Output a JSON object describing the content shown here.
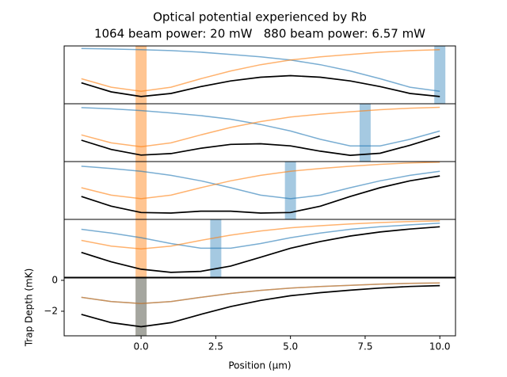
{
  "chart_data": {
    "type": "line",
    "title": "Optical potential experienced by Rb",
    "subtitle": "1064 beam power: 20 mW   880 beam power: 6.57 mW",
    "xlabel": "Position (μm)",
    "ylabel": "Trap Depth (mK)",
    "x": [
      -2,
      -1,
      0,
      1,
      2,
      3,
      4,
      5,
      6,
      7,
      8,
      9,
      10
    ],
    "xlim": [
      -2.575,
      10.525
    ],
    "xticks": [
      {
        "value": 0,
        "label": "0.0"
      },
      {
        "value": 2.5,
        "label": "2.5"
      },
      {
        "value": 5,
        "label": "5.0"
      },
      {
        "value": 7.5,
        "label": "7.5"
      },
      {
        "value": 10,
        "label": "10.0"
      }
    ],
    "panels": [
      {
        "ylim": [
          -1.9,
          -0.05
        ],
        "bar_1064": 0,
        "bar_880": 10,
        "series": [
          {
            "color": "#1f77b4",
            "values": [
              -0.13,
              -0.15,
              -0.17,
              -0.2,
              -0.25,
              -0.32,
              -0.4,
              -0.5,
              -0.65,
              -0.85,
              -1.1,
              -1.37,
              -1.5
            ]
          },
          {
            "color": "#ff7f0e",
            "values": [
              -1.1,
              -1.37,
              -1.5,
              -1.37,
              -1.1,
              -0.85,
              -0.65,
              -0.5,
              -0.4,
              -0.32,
              -0.25,
              -0.2,
              -0.17
            ]
          },
          {
            "color": "#000000",
            "values": [
              -1.23,
              -1.52,
              -1.67,
              -1.57,
              -1.35,
              -1.17,
              -1.05,
              -1.0,
              -1.05,
              -1.17,
              -1.35,
              -1.57,
              -1.67
            ]
          }
        ]
      },
      {
        "ylim": [
          -2.0,
          -0.05
        ],
        "bar_1064": 0,
        "bar_880": 7.5,
        "series": [
          {
            "color": "#1f77b4",
            "values": [
              -0.18,
              -0.22,
              -0.28,
              -0.36,
              -0.45,
              -0.57,
              -0.75,
              -0.97,
              -1.25,
              -1.47,
              -1.47,
              -1.25,
              -0.97
            ]
          },
          {
            "color": "#ff7f0e",
            "values": [
              -1.1,
              -1.37,
              -1.5,
              -1.37,
              -1.1,
              -0.85,
              -0.65,
              -0.5,
              -0.4,
              -0.32,
              -0.25,
              -0.2,
              -0.17
            ]
          },
          {
            "color": "#000000",
            "values": [
              -1.28,
              -1.59,
              -1.78,
              -1.73,
              -1.55,
              -1.42,
              -1.4,
              -1.47,
              -1.65,
              -1.79,
              -1.72,
              -1.45,
              -1.14
            ]
          }
        ]
      },
      {
        "ylim": [
          -2.25,
          -0.15
        ],
        "bar_1064": 0,
        "bar_880": 5,
        "series": [
          {
            "color": "#1f77b4",
            "values": [
              -0.32,
              -0.4,
              -0.5,
              -0.65,
              -0.85,
              -1.1,
              -1.37,
              -1.5,
              -1.37,
              -1.1,
              -0.85,
              -0.65,
              -0.5
            ]
          },
          {
            "color": "#ff7f0e",
            "values": [
              -1.1,
              -1.37,
              -1.5,
              -1.37,
              -1.1,
              -0.85,
              -0.65,
              -0.5,
              -0.4,
              -0.32,
              -0.25,
              -0.2,
              -0.17
            ]
          },
          {
            "color": "#000000",
            "values": [
              -1.42,
              -1.77,
              -2.0,
              -2.02,
              -1.95,
              -1.95,
              -2.02,
              -2.0,
              -1.77,
              -1.42,
              -1.1,
              -0.85,
              -0.67
            ]
          }
        ]
      },
      {
        "ylim": [
          -2.85,
          -0.1
        ],
        "bar_1064": 0,
        "bar_880": 2.5,
        "series": [
          {
            "color": "#1f77b4",
            "values": [
              -0.57,
              -0.75,
              -0.97,
              -1.25,
              -1.47,
              -1.47,
              -1.25,
              -0.97,
              -0.75,
              -0.57,
              -0.45,
              -0.36,
              -0.28
            ]
          },
          {
            "color": "#ff7f0e",
            "values": [
              -1.1,
              -1.37,
              -1.5,
              -1.37,
              -1.1,
              -0.85,
              -0.65,
              -0.5,
              -0.4,
              -0.32,
              -0.25,
              -0.2,
              -0.17
            ]
          },
          {
            "color": "#000000",
            "values": [
              -1.67,
              -2.12,
              -2.47,
              -2.62,
              -2.57,
              -2.32,
              -1.9,
              -1.47,
              -1.15,
              -0.89,
              -0.7,
              -0.56,
              -0.45
            ]
          }
        ]
      },
      {
        "ylim": [
          -3.59,
          0.15
        ],
        "yticks": [
          0,
          {
            "value": -2,
            "label": "−2"
          }
        ],
        "bar_1064": 0,
        "bar_880": 0,
        "series": [
          {
            "color": "#1f77b4",
            "values": [
              -1.1,
              -1.37,
              -1.5,
              -1.37,
              -1.1,
              -0.85,
              -0.65,
              -0.5,
              -0.4,
              -0.32,
              -0.25,
              -0.2,
              -0.17
            ]
          },
          {
            "color": "#ff7f0e",
            "values": [
              -1.1,
              -1.37,
              -1.5,
              -1.37,
              -1.1,
              -0.85,
              -0.65,
              -0.5,
              -0.4,
              -0.32,
              -0.25,
              -0.2,
              -0.17
            ]
          },
          {
            "color": "#000000",
            "values": [
              -2.2,
              -2.74,
              -3.0,
              -2.74,
              -2.2,
              -1.7,
              -1.3,
              -1.0,
              -0.8,
              -0.64,
              -0.5,
              -0.4,
              -0.34
            ]
          }
        ]
      }
    ]
  }
}
